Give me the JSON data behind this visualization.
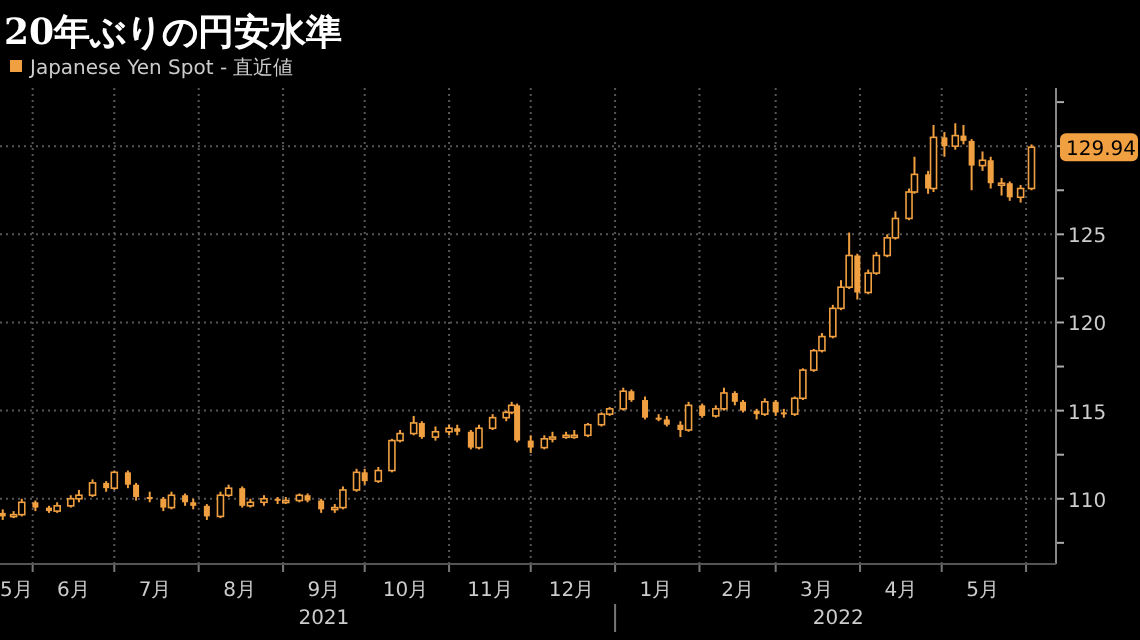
{
  "chart_data": {
    "type": "candlestick",
    "title": "20年ぶりの円安水準",
    "legend": "top left",
    "grid": true,
    "x": [
      "2021-05-21",
      "2021-05-25",
      "2021-05-28",
      "2021-06-02",
      "2021-06-07",
      "2021-06-10",
      "2021-06-15",
      "2021-06-18",
      "2021-06-23",
      "2021-06-28",
      "2021-07-01",
      "2021-07-06",
      "2021-07-09",
      "2021-07-14",
      "2021-07-19",
      "2021-07-22",
      "2021-07-27",
      "2021-07-30",
      "2021-08-04",
      "2021-08-09",
      "2021-08-12",
      "2021-08-17",
      "2021-08-20",
      "2021-08-25",
      "2021-08-30",
      "2021-09-02",
      "2021-09-07",
      "2021-09-10",
      "2021-09-15",
      "2021-09-20",
      "2021-09-23",
      "2021-09-28",
      "2021-10-01",
      "2021-10-06",
      "2021-10-11",
      "2021-10-14",
      "2021-10-19",
      "2021-10-22",
      "2021-10-27",
      "2021-11-01",
      "2021-11-04",
      "2021-11-09",
      "2021-11-12",
      "2021-11-17",
      "2021-11-22",
      "2021-11-24",
      "2021-11-26",
      "2021-12-01",
      "2021-12-06",
      "2021-12-09",
      "2021-12-14",
      "2021-12-17",
      "2021-12-22",
      "2021-12-27",
      "2021-12-30",
      "2022-01-04",
      "2022-01-07",
      "2022-01-12",
      "2022-01-17",
      "2022-01-20",
      "2022-01-25",
      "2022-01-28",
      "2022-02-02",
      "2022-02-07",
      "2022-02-10",
      "2022-02-14",
      "2022-02-17",
      "2022-02-22",
      "2022-02-25",
      "2022-03-01",
      "2022-03-04",
      "2022-03-08",
      "2022-03-11",
      "2022-03-15",
      "2022-03-18",
      "2022-03-22",
      "2022-03-25",
      "2022-03-28",
      "2022-03-31",
      "2022-04-04",
      "2022-04-07",
      "2022-04-11",
      "2022-04-14",
      "2022-04-19",
      "2022-04-21",
      "2022-04-26",
      "2022-04-28",
      "2022-05-02",
      "2022-05-06",
      "2022-05-09",
      "2022-05-12",
      "2022-05-16",
      "2022-05-19",
      "2022-05-23",
      "2022-05-26",
      "2022-05-30",
      "2022-06-03"
    ],
    "series": [
      {
        "name": "Japanese Yen Spot - 直近値",
        "color": "#f0a040",
        "ohlc": [
          [
            109.2,
            109.4,
            108.8,
            109.0
          ],
          [
            109.0,
            109.3,
            108.9,
            109.1
          ],
          [
            109.1,
            110.0,
            109.0,
            109.8
          ],
          [
            109.8,
            109.9,
            109.3,
            109.5
          ],
          [
            109.5,
            109.6,
            109.2,
            109.3
          ],
          [
            109.3,
            109.8,
            109.2,
            109.6
          ],
          [
            109.6,
            110.2,
            109.5,
            110.0
          ],
          [
            110.0,
            110.5,
            109.8,
            110.2
          ],
          [
            110.2,
            111.1,
            110.1,
            110.9
          ],
          [
            110.9,
            111.0,
            110.4,
            110.6
          ],
          [
            110.6,
            111.6,
            110.5,
            111.5
          ],
          [
            111.5,
            111.6,
            110.6,
            110.8
          ],
          [
            110.8,
            110.9,
            109.9,
            110.1
          ],
          [
            110.1,
            110.4,
            109.8,
            110.0
          ],
          [
            110.0,
            110.1,
            109.3,
            109.5
          ],
          [
            109.5,
            110.4,
            109.4,
            110.2
          ],
          [
            110.2,
            110.3,
            109.6,
            109.8
          ],
          [
            109.8,
            110.0,
            109.4,
            109.6
          ],
          [
            109.6,
            109.7,
            108.8,
            109.0
          ],
          [
            109.0,
            110.4,
            108.9,
            110.2
          ],
          [
            110.2,
            110.8,
            110.1,
            110.6
          ],
          [
            110.6,
            110.7,
            109.5,
            109.6
          ],
          [
            109.6,
            110.0,
            109.5,
            109.8
          ],
          [
            109.8,
            110.2,
            109.6,
            110.0
          ],
          [
            110.0,
            110.1,
            109.7,
            109.9
          ],
          [
            109.9,
            110.1,
            109.7,
            109.9
          ],
          [
            109.9,
            110.3,
            109.8,
            110.2
          ],
          [
            110.2,
            110.3,
            109.8,
            109.9
          ],
          [
            109.9,
            110.0,
            109.2,
            109.4
          ],
          [
            109.4,
            109.7,
            109.2,
            109.5
          ],
          [
            109.5,
            110.7,
            109.4,
            110.5
          ],
          [
            110.5,
            111.7,
            110.4,
            111.5
          ],
          [
            111.5,
            111.7,
            110.8,
            111.0
          ],
          [
            111.0,
            111.8,
            110.9,
            111.6
          ],
          [
            111.6,
            113.4,
            111.5,
            113.3
          ],
          [
            113.3,
            113.9,
            113.2,
            113.7
          ],
          [
            113.7,
            114.7,
            113.6,
            114.3
          ],
          [
            114.3,
            114.4,
            113.4,
            113.5
          ],
          [
            113.5,
            114.1,
            113.3,
            113.8
          ],
          [
            113.8,
            114.2,
            113.6,
            114.0
          ],
          [
            114.0,
            114.2,
            113.6,
            113.8
          ],
          [
            113.8,
            113.9,
            112.8,
            112.9
          ],
          [
            112.9,
            114.2,
            112.8,
            114.0
          ],
          [
            114.0,
            114.8,
            113.9,
            114.6
          ],
          [
            114.6,
            115.0,
            114.4,
            114.9
          ],
          [
            114.9,
            115.5,
            114.8,
            115.3
          ],
          [
            115.3,
            115.4,
            113.2,
            113.3
          ],
          [
            113.3,
            113.6,
            112.6,
            112.9
          ],
          [
            112.9,
            113.6,
            112.8,
            113.4
          ],
          [
            113.4,
            113.8,
            113.2,
            113.5
          ],
          [
            113.5,
            113.8,
            113.4,
            113.6
          ],
          [
            113.6,
            113.9,
            113.4,
            113.6
          ],
          [
            113.6,
            114.3,
            113.5,
            114.2
          ],
          [
            114.2,
            114.9,
            114.1,
            114.8
          ],
          [
            114.8,
            115.2,
            114.7,
            115.1
          ],
          [
            115.1,
            116.3,
            115.0,
            116.1
          ],
          [
            116.1,
            116.2,
            115.5,
            115.6
          ],
          [
            115.6,
            115.8,
            114.5,
            114.6
          ],
          [
            114.6,
            114.8,
            114.4,
            114.5
          ],
          [
            114.5,
            114.7,
            114.1,
            114.2
          ],
          [
            114.2,
            114.4,
            113.5,
            113.9
          ],
          [
            113.9,
            115.5,
            113.8,
            115.3
          ],
          [
            115.3,
            115.4,
            114.6,
            114.7
          ],
          [
            114.7,
            115.3,
            114.6,
            115.1
          ],
          [
            115.1,
            116.3,
            115.0,
            116.0
          ],
          [
            116.0,
            116.1,
            115.3,
            115.5
          ],
          [
            115.5,
            115.6,
            114.9,
            115.0
          ],
          [
            115.0,
            115.1,
            114.5,
            114.8
          ],
          [
            114.8,
            115.7,
            114.7,
            115.5
          ],
          [
            115.5,
            115.6,
            114.7,
            114.9
          ],
          [
            114.9,
            115.1,
            114.6,
            114.8
          ],
          [
            114.8,
            115.8,
            114.7,
            115.7
          ],
          [
            115.7,
            117.4,
            115.6,
            117.3
          ],
          [
            117.3,
            118.5,
            117.2,
            118.4
          ],
          [
            118.4,
            119.4,
            118.3,
            119.2
          ],
          [
            119.2,
            121.0,
            119.1,
            120.8
          ],
          [
            120.8,
            122.4,
            120.7,
            122.0
          ],
          [
            122.0,
            125.1,
            121.9,
            123.8
          ],
          [
            123.8,
            123.9,
            121.3,
            121.7
          ],
          [
            121.7,
            123.0,
            121.6,
            122.8
          ],
          [
            122.8,
            124.0,
            122.7,
            123.8
          ],
          [
            123.8,
            125.0,
            123.7,
            124.8
          ],
          [
            124.8,
            126.3,
            124.7,
            125.9
          ],
          [
            125.9,
            127.6,
            125.8,
            127.4
          ],
          [
            127.4,
            129.4,
            127.3,
            128.4
          ],
          [
            128.4,
            128.6,
            127.3,
            127.6
          ],
          [
            127.6,
            131.2,
            127.4,
            130.5
          ],
          [
            130.5,
            130.8,
            129.4,
            130.0
          ],
          [
            130.0,
            131.3,
            129.8,
            130.6
          ],
          [
            130.6,
            131.2,
            130.1,
            130.3
          ],
          [
            130.3,
            130.4,
            127.5,
            128.9
          ],
          [
            128.9,
            129.7,
            128.6,
            129.2
          ],
          [
            129.2,
            129.4,
            127.6,
            127.9
          ],
          [
            127.9,
            128.2,
            127.2,
            127.9
          ],
          [
            127.9,
            128.0,
            126.9,
            127.1
          ],
          [
            127.1,
            127.8,
            126.8,
            127.6
          ],
          [
            127.6,
            130.1,
            127.5,
            129.94
          ]
        ]
      }
    ],
    "xlim": [
      "2021-05-20",
      "2022-06-12"
    ],
    "xticks": [
      {
        "value": "2021-05-26",
        "label": "5月"
      },
      {
        "value": "2021-06-01",
        "label": null
      },
      {
        "value": "2021-06-16",
        "label": "6月"
      },
      {
        "value": "2021-07-01",
        "label": null
      },
      {
        "value": "2021-07-16",
        "label": "7月"
      },
      {
        "value": "2021-08-01",
        "label": null
      },
      {
        "value": "2021-08-16",
        "label": "8月"
      },
      {
        "value": "2021-09-01",
        "label": null
      },
      {
        "value": "2021-09-16",
        "label": "9月"
      },
      {
        "value": "2021-10-01",
        "label": null
      },
      {
        "value": "2021-10-16",
        "label": "10月"
      },
      {
        "value": "2021-11-01",
        "label": null
      },
      {
        "value": "2021-11-16",
        "label": "11月"
      },
      {
        "value": "2021-12-01",
        "label": null
      },
      {
        "value": "2021-12-16",
        "label": "12月"
      },
      {
        "value": "2022-01-01",
        "label": null
      },
      {
        "value": "2022-01-16",
        "label": "1月"
      },
      {
        "value": "2022-02-01",
        "label": null
      },
      {
        "value": "2022-02-15",
        "label": "2月"
      },
      {
        "value": "2022-03-01",
        "label": null
      },
      {
        "value": "2022-03-16",
        "label": "3月"
      },
      {
        "value": "2022-04-01",
        "label": null
      },
      {
        "value": "2022-04-16",
        "label": "4月"
      },
      {
        "value": "2022-05-01",
        "label": null
      },
      {
        "value": "2022-05-16",
        "label": "5月"
      },
      {
        "value": "2022-06-01",
        "label": null
      }
    ],
    "x2lim": [
      "2021-05-20",
      "2022-06-12"
    ],
    "x2ticks": [
      {
        "value": "2021-09-16",
        "label": "2021"
      },
      {
        "value": "2022-01-01",
        "label": null
      },
      {
        "value": "2022-03-24",
        "label": "2022"
      }
    ],
    "ylim": [
      106.3,
      133.3
    ],
    "yticks": [
      {
        "value": 107.5,
        "label": null
      },
      110,
      {
        "value": 112.5,
        "label": null
      },
      115,
      {
        "value": 117.5,
        "label": null
      },
      120,
      {
        "value": 122.5,
        "label": null
      },
      125,
      {
        "value": 127.5,
        "label": null
      },
      {
        "value": 130,
        "label": null
      },
      {
        "value": 132.5,
        "label": null
      }
    ],
    "annotations": [
      {
        "text": "129.94",
        "x": "2022-06-03",
        "y": 129.94
      }
    ]
  }
}
